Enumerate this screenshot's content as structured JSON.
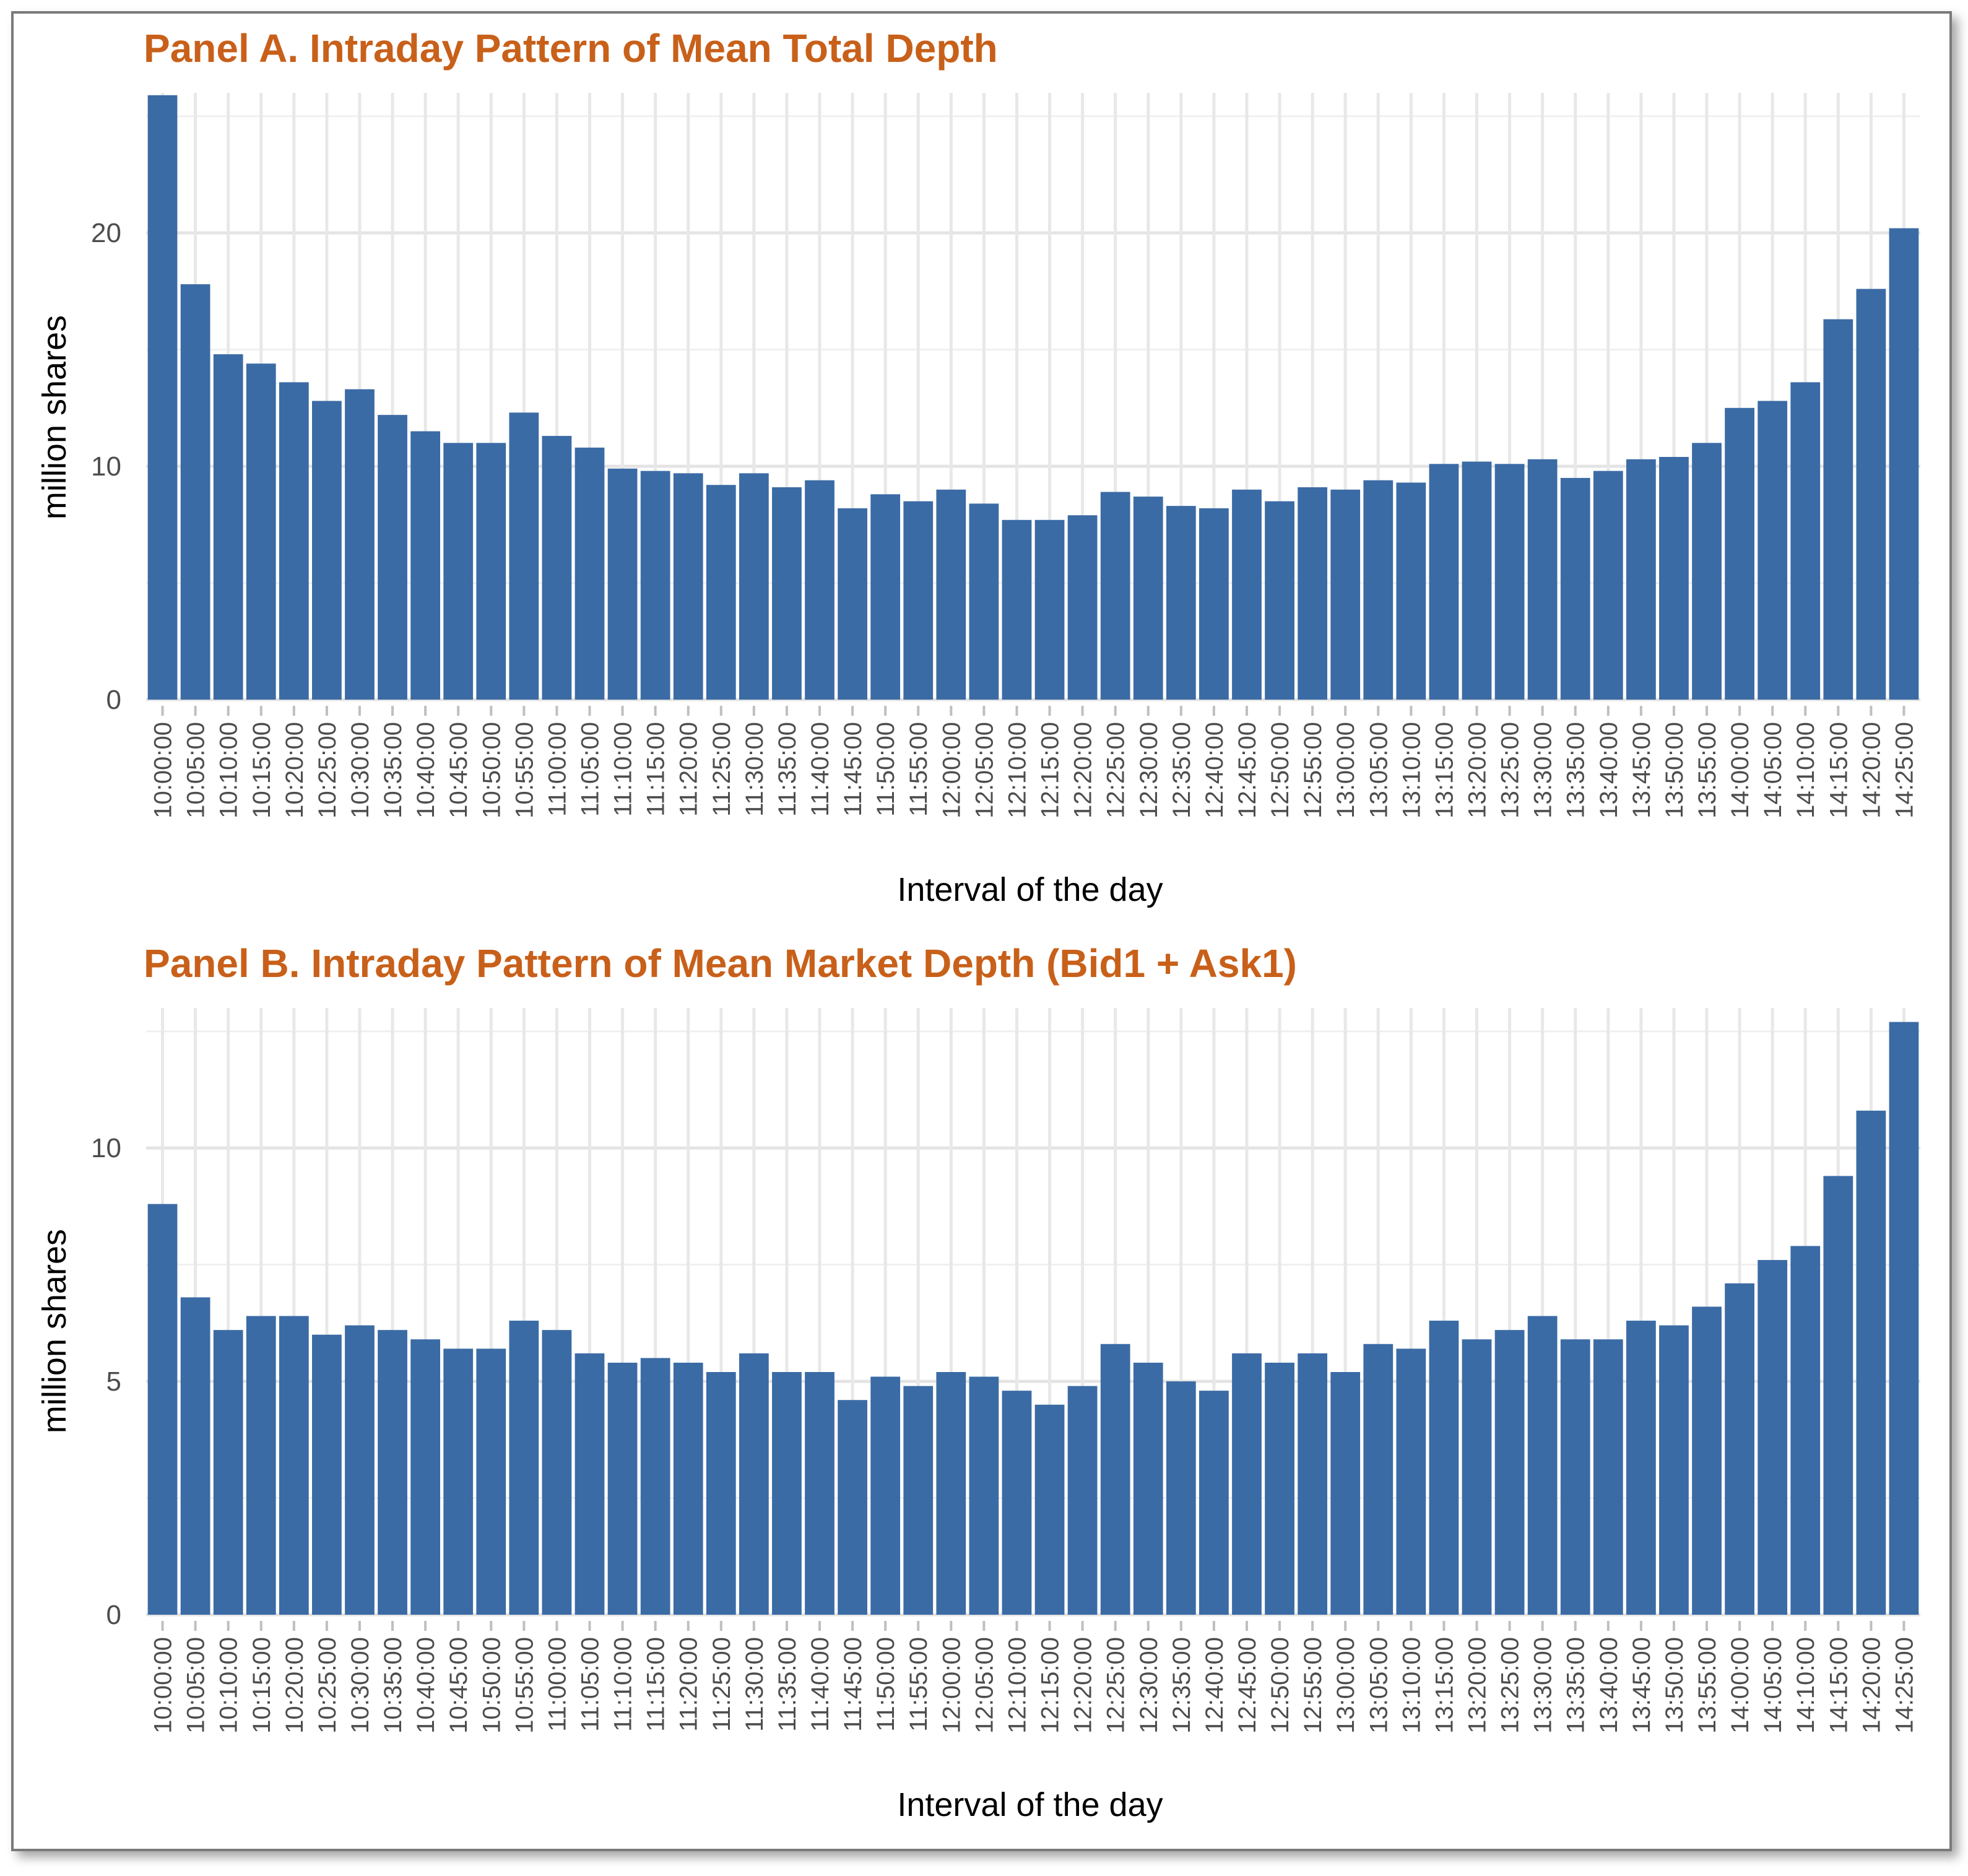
{
  "chart_data": [
    {
      "type": "bar",
      "title": "Panel A. Intraday Pattern of Mean Total Depth",
      "xlabel": "Interval of the day",
      "ylabel": "million shares",
      "ylim": [
        0,
        26
      ],
      "yticks": [
        "0",
        "10",
        "20"
      ],
      "ytick_values": [
        0,
        10,
        20
      ],
      "color": "#3b6ba5",
      "categories": [
        "10:00:00",
        "10:05:00",
        "10:10:00",
        "10:15:00",
        "10:20:00",
        "10:25:00",
        "10:30:00",
        "10:35:00",
        "10:40:00",
        "10:45:00",
        "10:50:00",
        "10:55:00",
        "11:00:00",
        "11:05:00",
        "11:10:00",
        "11:15:00",
        "11:20:00",
        "11:25:00",
        "11:30:00",
        "11:35:00",
        "11:40:00",
        "11:45:00",
        "11:50:00",
        "11:55:00",
        "12:00:00",
        "12:05:00",
        "12:10:00",
        "12:15:00",
        "12:20:00",
        "12:25:00",
        "12:30:00",
        "12:35:00",
        "12:40:00",
        "12:45:00",
        "12:50:00",
        "12:55:00",
        "13:00:00",
        "13:05:00",
        "13:10:00",
        "13:15:00",
        "13:20:00",
        "13:25:00",
        "13:30:00",
        "13:35:00",
        "13:40:00",
        "13:45:00",
        "13:50:00",
        "13:55:00",
        "14:00:00",
        "14:05:00",
        "14:10:00",
        "14:15:00",
        "14:20:00",
        "14:25:00"
      ],
      "values": [
        25.9,
        17.8,
        14.8,
        14.4,
        13.6,
        12.8,
        13.3,
        12.2,
        11.5,
        11.0,
        11.0,
        12.3,
        11.3,
        10.8,
        9.9,
        9.8,
        9.7,
        9.2,
        9.7,
        9.1,
        9.4,
        8.2,
        8.8,
        8.5,
        9.0,
        8.4,
        7.7,
        7.7,
        7.9,
        8.9,
        8.7,
        8.3,
        8.2,
        9.0,
        8.5,
        9.1,
        9.0,
        9.4,
        9.3,
        10.1,
        10.2,
        10.1,
        10.3,
        9.5,
        9.8,
        10.3,
        10.4,
        11.0,
        12.5,
        12.8,
        13.6,
        16.3,
        17.6,
        20.2
      ]
    },
    {
      "type": "bar",
      "title": "Panel B. Intraday Pattern of Mean Market Depth (Bid1 + Ask1)",
      "xlabel": "Interval of the day",
      "ylabel": "million shares",
      "ylim": [
        0,
        13
      ],
      "yticks": [
        "0",
        "5",
        "10"
      ],
      "ytick_values": [
        0,
        5,
        10
      ],
      "color": "#3b6ba5",
      "categories": [
        "10:00:00",
        "10:05:00",
        "10:10:00",
        "10:15:00",
        "10:20:00",
        "10:25:00",
        "10:30:00",
        "10:35:00",
        "10:40:00",
        "10:45:00",
        "10:50:00",
        "10:55:00",
        "11:00:00",
        "11:05:00",
        "11:10:00",
        "11:15:00",
        "11:20:00",
        "11:25:00",
        "11:30:00",
        "11:35:00",
        "11:40:00",
        "11:45:00",
        "11:50:00",
        "11:55:00",
        "12:00:00",
        "12:05:00",
        "12:10:00",
        "12:15:00",
        "12:20:00",
        "12:25:00",
        "12:30:00",
        "12:35:00",
        "12:40:00",
        "12:45:00",
        "12:50:00",
        "12:55:00",
        "13:00:00",
        "13:05:00",
        "13:10:00",
        "13:15:00",
        "13:20:00",
        "13:25:00",
        "13:30:00",
        "13:35:00",
        "13:40:00",
        "13:45:00",
        "13:50:00",
        "13:55:00",
        "14:00:00",
        "14:05:00",
        "14:10:00",
        "14:15:00",
        "14:20:00",
        "14:25:00"
      ],
      "values": [
        8.8,
        6.8,
        6.1,
        6.4,
        6.4,
        6.0,
        6.2,
        6.1,
        5.9,
        5.7,
        5.7,
        6.3,
        6.1,
        5.6,
        5.4,
        5.5,
        5.4,
        5.2,
        5.6,
        5.2,
        5.2,
        4.6,
        5.1,
        4.9,
        5.2,
        5.1,
        4.8,
        4.5,
        4.9,
        5.8,
        5.4,
        5.0,
        4.8,
        5.6,
        5.4,
        5.6,
        5.2,
        5.8,
        5.7,
        6.3,
        5.9,
        6.1,
        6.4,
        5.9,
        5.9,
        6.3,
        6.2,
        6.6,
        7.1,
        7.6,
        7.9,
        9.4,
        10.8,
        12.7
      ]
    }
  ]
}
